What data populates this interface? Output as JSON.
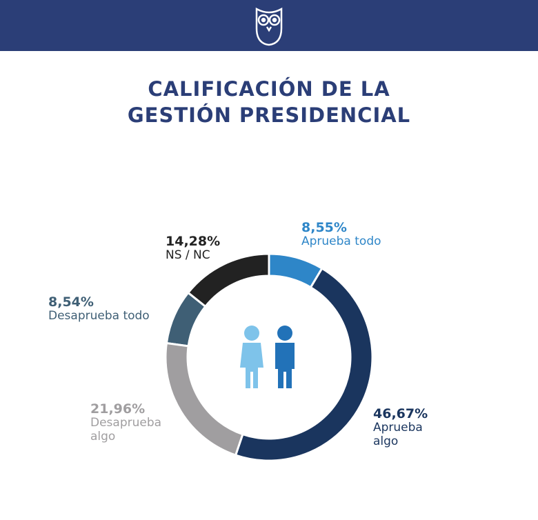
{
  "chart_data": {
    "type": "donut",
    "title": "CALIFICACIÓN DE LA GESTIÓN PRESIDENCIAL",
    "categories": [
      "Aprueba todo",
      "Aprueba algo",
      "Desaprueba algo",
      "Desaprueba todo",
      "NS / NC"
    ],
    "values": [
      8.55,
      46.67,
      21.96,
      8.54,
      14.28
    ],
    "value_labels": [
      "8,55%",
      "46,67%",
      "21,96%",
      "8,54%",
      "14,28%"
    ],
    "colors": [
      "#2e86c8",
      "#1a355e",
      "#a09ea0",
      "#3f5f75",
      "#222222"
    ]
  }
}
